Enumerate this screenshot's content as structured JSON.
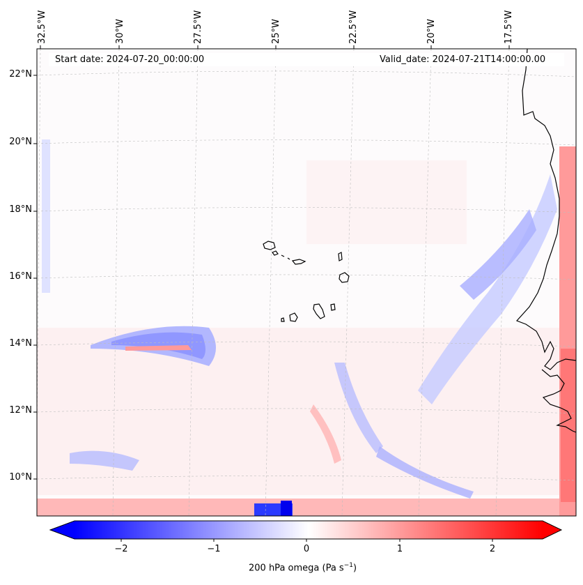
{
  "header": {
    "start_label": "Start date: 2024-07-20_00:00:00",
    "valid_label": "Valid_date: 2024-07-21T14:00:00.00"
  },
  "map": {
    "lon_labels": [
      "32.5°W",
      "30°W",
      "27.5°W",
      "25°W",
      "22.5°W",
      "20°W",
      "17.5°W"
    ],
    "lat_labels": [
      "22°N",
      "20°N",
      "18°N",
      "16°N",
      "14°N",
      "12°N",
      "10°N"
    ],
    "variable": "200 hPa omega",
    "regions": [
      "Cape Verde Islands",
      "West African coast"
    ]
  },
  "colorbar": {
    "title_prefix": "200 hPa omega (Pa s",
    "title_exp": "−1",
    "title_suffix": ")",
    "ticks": [
      "−2",
      "−1",
      "0",
      "1",
      "2"
    ],
    "min": -2.7,
    "max": 2.7,
    "negative_color": "#0000ff",
    "positive_color": "#ff0000",
    "zero_color": "#ffffff"
  }
}
